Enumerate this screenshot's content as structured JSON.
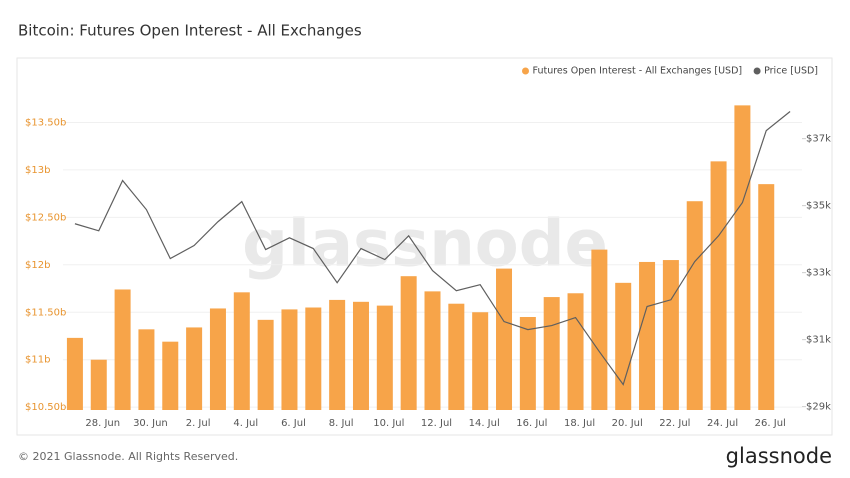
{
  "chart_data": {
    "type": "bar_line",
    "title": "Bitcoin: Futures Open Interest - All Exchanges",
    "watermark": "glassnode",
    "footer": "© 2021 Glassnode. All Rights Reserved.",
    "logo": "glassnode",
    "categories": [
      null,
      "28. Jun",
      null,
      "30. Jun",
      null,
      "2. Jul",
      null,
      "4. Jul",
      null,
      "6. Jul",
      null,
      "8. Jul",
      null,
      "10. Jul",
      null,
      "12. Jul",
      null,
      "14. Jul",
      null,
      "16. Jul",
      null,
      "18. Jul",
      null,
      "20. Jul",
      null,
      "22. Jul",
      null,
      "24. Jul",
      null,
      "26. Jul",
      null
    ],
    "series": [
      {
        "name": "Futures Open Interest - All Exchanges [USD]",
        "color": "#f7a449",
        "values": [
          11.23,
          11.0,
          11.74,
          11.32,
          11.19,
          11.34,
          11.54,
          11.71,
          11.42,
          11.53,
          11.55,
          11.63,
          11.61,
          11.57,
          11.88,
          11.72,
          11.59,
          11.5,
          11.96,
          11.45,
          11.66,
          11.7,
          12.16,
          11.81,
          12.03,
          12.05,
          12.67,
          13.09,
          13.68,
          12.85,
          null
        ]
      },
      {
        "name": "Price [USD]",
        "color": "#5f5f5f",
        "axis": "y2",
        "values": [
          34.46,
          34.25,
          35.75,
          34.88,
          33.42,
          33.81,
          34.52,
          35.12,
          33.69,
          34.04,
          33.72,
          32.7,
          33.72,
          33.39,
          34.1,
          33.06,
          32.46,
          32.64,
          31.54,
          31.3,
          31.42,
          31.66,
          30.64,
          29.66,
          31.99,
          32.19,
          33.33,
          34.1,
          35.09,
          37.24,
          37.81
        ]
      }
    ],
    "ylim": [
      10.47,
      14.0
    ],
    "yticks": [
      {
        "value": 10.5,
        "label": "$10.50b"
      },
      {
        "value": 11,
        "label": "$11b"
      },
      {
        "value": 11.5,
        "label": "$11.50b"
      },
      {
        "value": 12,
        "label": "$12b"
      },
      {
        "value": 12.5,
        "label": "$12.50b"
      },
      {
        "value": 13,
        "label": "$13b"
      },
      {
        "value": 13.5,
        "label": "$13.50b"
      }
    ],
    "y2lim": [
      28.9,
      38.9
    ],
    "y2ticks": [
      {
        "value": 29,
        "label": "$29k"
      },
      {
        "value": 31,
        "label": "$31k"
      },
      {
        "value": 33,
        "label": "$33k"
      },
      {
        "value": 35,
        "label": "$35k"
      },
      {
        "value": 37,
        "label": "$37k"
      }
    ],
    "grid": true,
    "legend": "top-right"
  }
}
